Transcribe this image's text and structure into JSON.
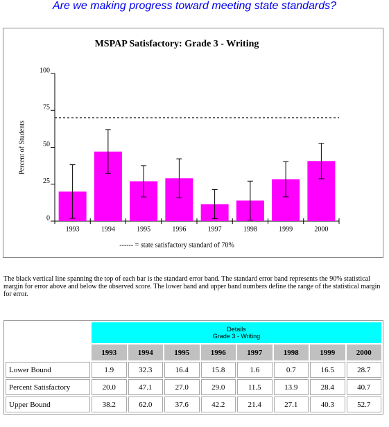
{
  "heading": "Are we making progress toward meeting state standards?",
  "chart_data": {
    "type": "bar",
    "title": "MSPAP Satisfactory: Grade 3 - Writing",
    "y_label": "Percent of Students",
    "categories": [
      "1993",
      "1994",
      "1995",
      "1996",
      "1997",
      "1998",
      "1999",
      "2000"
    ],
    "values": [
      20.0,
      47.1,
      27.0,
      29.0,
      11.5,
      13.9,
      28.4,
      40.7
    ],
    "lower": [
      1.9,
      32.3,
      16.4,
      15.8,
      1.6,
      0.7,
      16.5,
      28.7
    ],
    "upper": [
      38.2,
      62.0,
      37.6,
      42.2,
      21.4,
      27.1,
      40.3,
      52.7
    ],
    "color": "#ff00ff",
    "ylim": [
      0,
      100
    ],
    "yticks": [
      0,
      25,
      50,
      75,
      100
    ],
    "reference_line": 70,
    "annotation": "------ = state satisfactory standard of 70%"
  },
  "paragraph": "The black vertical line spanning the top of each bar is the standard error band. The standard error band represents the 90% statistical margin for error above and below the observed score. The lower band and upper band numbers define the range of the statistical margin for error.",
  "table": {
    "caption": [
      "Details",
      "Grade 3 - Writing"
    ],
    "columns": [
      "1993",
      "1994",
      "1995",
      "1996",
      "1997",
      "1998",
      "1999",
      "2000"
    ],
    "rows": [
      {
        "label": "Lower Bound",
        "cells": [
          "1.9",
          "32.3",
          "16.4",
          "15.8",
          "1.6",
          "0.7",
          "16.5",
          "28.7"
        ]
      },
      {
        "label": "Percent Satisfactory",
        "cells": [
          "20.0",
          "47.1",
          "27.0",
          "29.0",
          "11.5",
          "13.9",
          "28.4",
          "40.7"
        ]
      },
      {
        "label": "Upper Bound",
        "cells": [
          "38.2",
          "62.0",
          "37.6",
          "42.2",
          "21.4",
          "27.1",
          "40.3",
          "52.7"
        ]
      }
    ]
  }
}
